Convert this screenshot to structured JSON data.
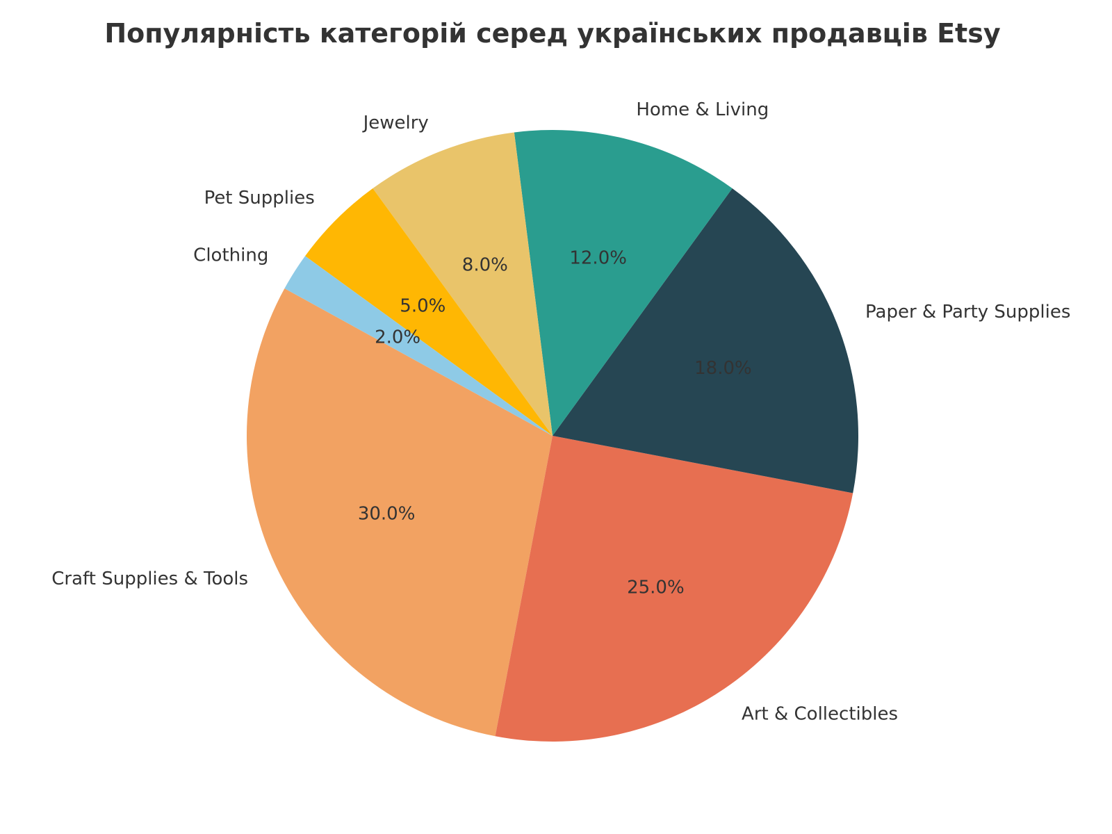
{
  "chart_data": {
    "type": "pie",
    "title": "Популярність категорій серед українських продавців Etsy",
    "start_angle_deg": 151.2,
    "direction": "counterclockwise",
    "slices": [
      {
        "label": "Craft Supplies & Tools",
        "value": 30.0,
        "pct_label": "30.0%",
        "color": "#F2A262"
      },
      {
        "label": "Art & Collectibles",
        "value": 25.0,
        "pct_label": "25.0%",
        "color": "#E76F51"
      },
      {
        "label": "Paper & Party Supplies",
        "value": 18.0,
        "pct_label": "18.0%",
        "color": "#264653"
      },
      {
        "label": "Home & Living",
        "value": 12.0,
        "pct_label": "12.0%",
        "color": "#2A9D8F"
      },
      {
        "label": "Jewelry",
        "value": 8.0,
        "pct_label": "8.0%",
        "color": "#E9C46A"
      },
      {
        "label": "Pet Supplies",
        "value": 5.0,
        "pct_label": "5.0%",
        "color": "#FFB703"
      },
      {
        "label": "Clothing",
        "value": 2.0,
        "pct_label": "2.0%",
        "color": "#8ECAE6"
      }
    ]
  }
}
